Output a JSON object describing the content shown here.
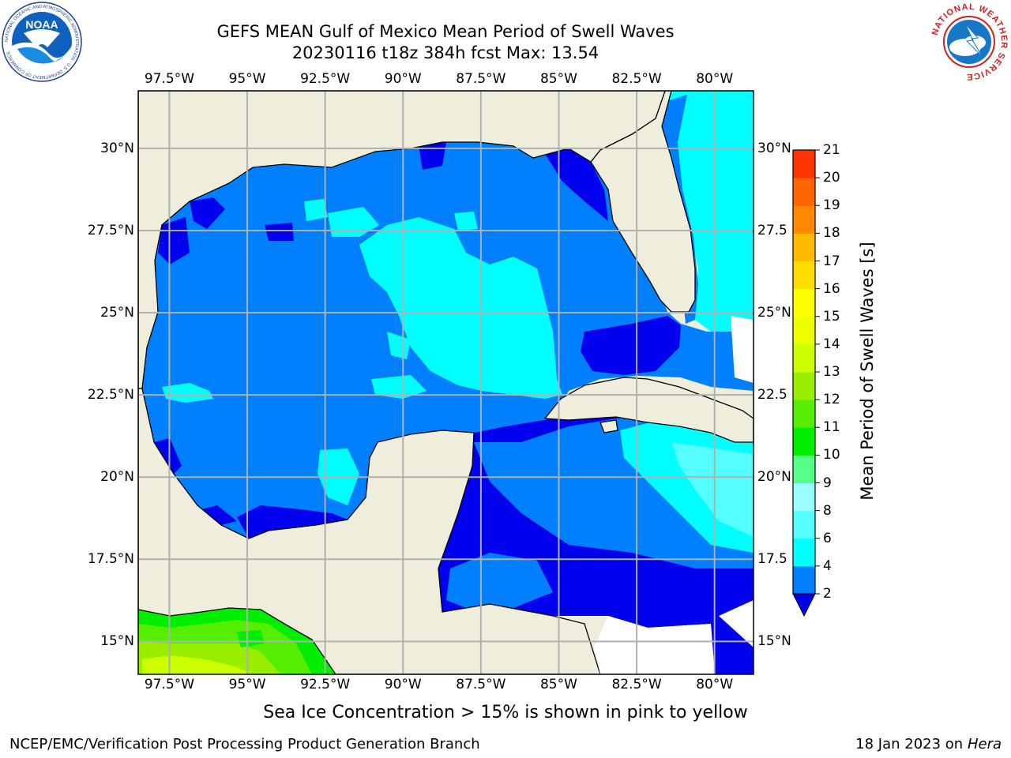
{
  "header": {
    "title_line1": "GEFS MEAN Gulf of Mexico Mean Period of Swell Waves",
    "title_line2": "20230116 t18z 384h fcst   Max: 13.54"
  },
  "logos": {
    "left": "NOAA",
    "left_ring": "NATIONAL OCEANIC AND ATMOSPHERIC ADMINISTRATION · U.S. DEPARTMENT OF COMMERCE",
    "right_ring": "NATIONAL WEATHER SERVICE"
  },
  "map": {
    "lon_range": [
      -98.5,
      -78.75
    ],
    "lat_range": [
      14.0,
      31.75
    ],
    "lon_ticks": [
      -97.5,
      -95,
      -92.5,
      -90,
      -87.5,
      -85,
      -82.5,
      -80
    ],
    "lon_labels": [
      "97.5°W",
      "95°W",
      "92.5°W",
      "90°W",
      "87.5°W",
      "85°W",
      "82.5°W",
      "80°W"
    ],
    "lat_ticks": [
      30,
      27.5,
      25,
      22.5,
      20,
      17.5,
      15
    ],
    "lat_labels_left": [
      "30°N",
      "27.5°N",
      "25°N",
      "22.5°N",
      "20°N",
      "17.5°N",
      "15°N"
    ],
    "lat_labels_right": [
      "30°N",
      "27.5",
      "25°N",
      "22.5",
      "20°N",
      "17.5",
      "15°N"
    ],
    "land_color": "#efeedc",
    "ocean_base_color": "#0080ff",
    "grid_color": "#b0b0b0"
  },
  "colorbar": {
    "label": "Mean Period of Swell Waves [s]",
    "levels": [
      2,
      4,
      6,
      8,
      9,
      10,
      11,
      12,
      13,
      14,
      15,
      16,
      17,
      18,
      19,
      20,
      21
    ],
    "tick_labels": [
      "2",
      "4",
      "6",
      "8",
      "9",
      "10",
      "11",
      "12",
      "13",
      "14",
      "15",
      "16",
      "17",
      "18",
      "19",
      "20",
      "21"
    ],
    "colors": [
      "#0080ff",
      "#00ffff",
      "#55ffff",
      "#99ffff",
      "#55ff88",
      "#00ee00",
      "#55ee00",
      "#99ee00",
      "#ccff00",
      "#eeff00",
      "#ffff00",
      "#ffdd00",
      "#ffbb00",
      "#ff8800",
      "#ff6600",
      "#ff3300"
    ],
    "under_color": "#0000ee"
  },
  "footer": {
    "sea_ice_note": "Sea Ice Concentration > 15% is shown in pink to yellow",
    "credit": "NCEP/EMC/Verification Post Processing Product Generation Branch",
    "date_prefix": "18 Jan 2023 on ",
    "machine": "Hera"
  }
}
